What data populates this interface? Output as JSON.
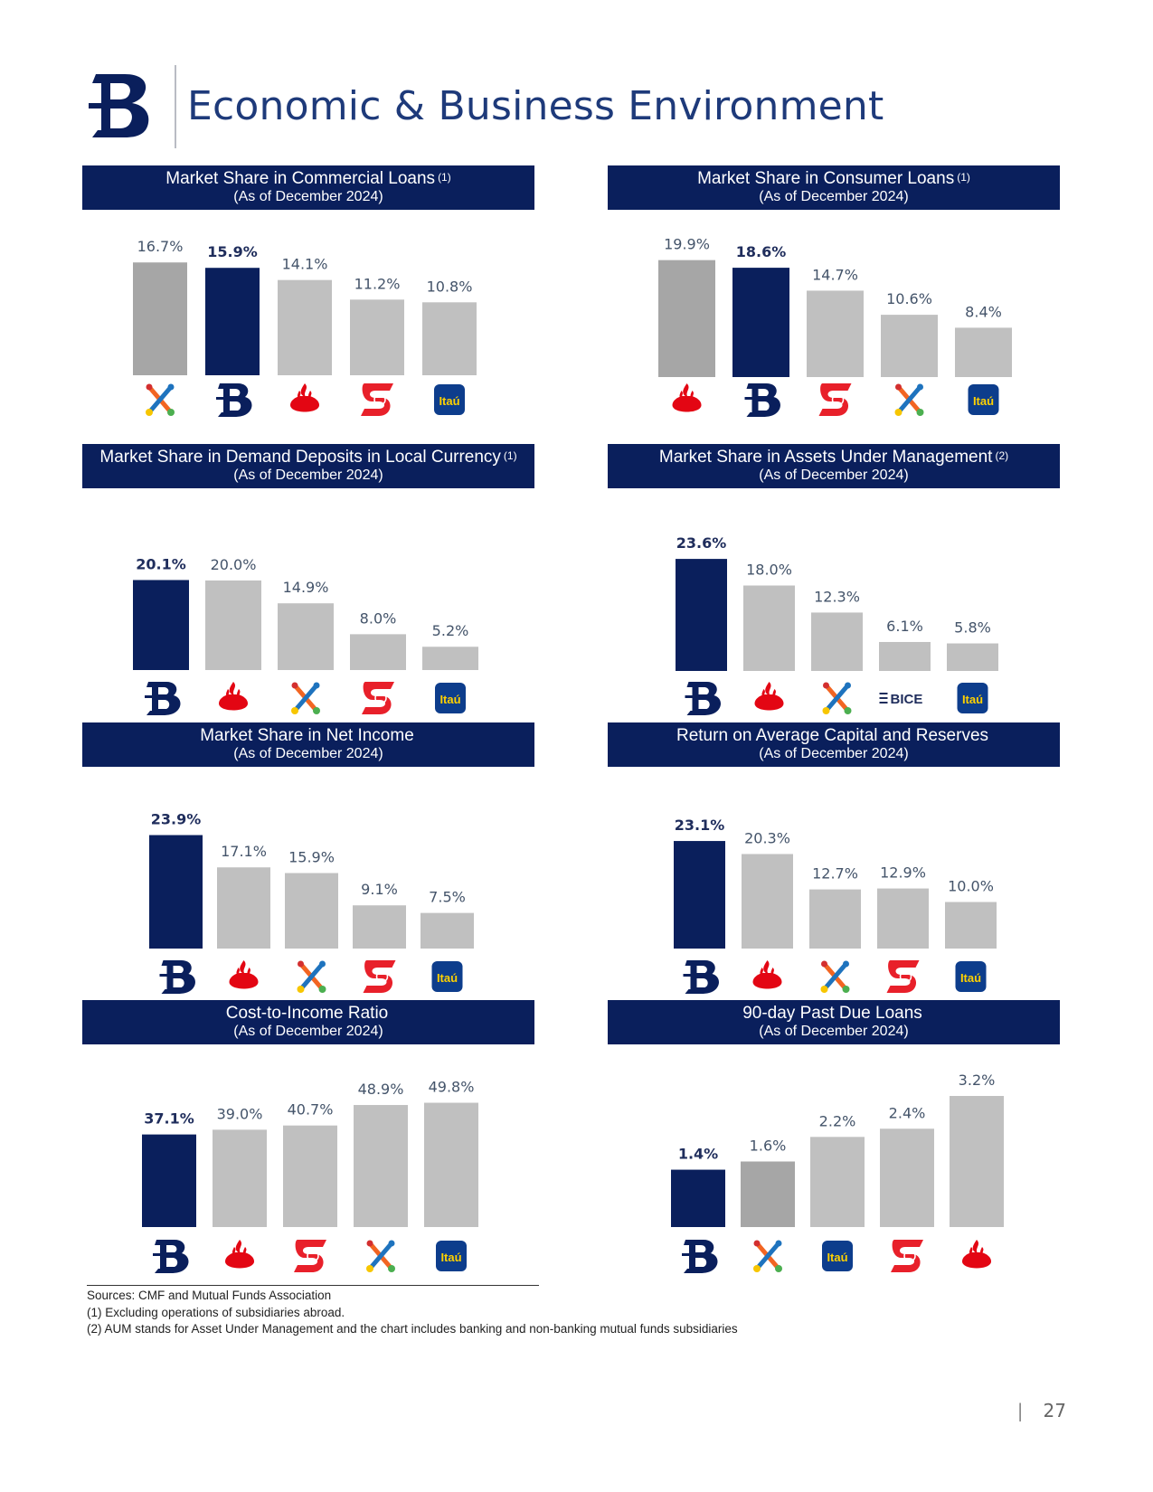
{
  "header": {
    "title": "Economic & Business Environment"
  },
  "colors": {
    "navy": "#0a1f5c",
    "darkgray": "#a6a6a6",
    "lightgray": "#c0c0c0"
  },
  "chart_data": [
    {
      "type": "bar",
      "title": "Market Share in Commercial Loans",
      "note": "(1)",
      "subtitle": "(As of December 2024)",
      "categories": [
        "Bci",
        "Banco de Chile",
        "Santander",
        "Scotiabank",
        "Itaú"
      ],
      "values": [
        16.7,
        15.9,
        14.1,
        11.2,
        10.8
      ],
      "labels": [
        "16.7%",
        "15.9%",
        "14.1%",
        "11.2%",
        "10.8%"
      ],
      "colors": [
        "darkgray",
        "navy",
        "lightgray",
        "lightgray",
        "lightgray"
      ],
      "ylim": [
        0,
        17
      ]
    },
    {
      "type": "bar",
      "title": "Market Share in Consumer Loans",
      "note": "(1)",
      "subtitle": "(As of December 2024)",
      "categories": [
        "Santander",
        "Banco de Chile",
        "Scotiabank",
        "Bci",
        "Itaú"
      ],
      "values": [
        19.9,
        18.6,
        14.7,
        10.6,
        8.4
      ],
      "labels": [
        "19.9%",
        "18.6%",
        "14.7%",
        "10.6%",
        "8.4%"
      ],
      "colors": [
        "darkgray",
        "navy",
        "lightgray",
        "lightgray",
        "lightgray"
      ],
      "ylim": [
        0,
        20
      ]
    },
    {
      "type": "bar",
      "title": "Market Share in Demand Deposits in Local Currency",
      "note": "(1)",
      "subtitle": "(As of December 2024)",
      "categories": [
        "Banco de Chile",
        "Santander",
        "Bci",
        "Scotiabank",
        "Itaú"
      ],
      "values": [
        20.1,
        20.0,
        14.9,
        8.0,
        5.2
      ],
      "labels": [
        "20.1%",
        "20.0%",
        "14.9%",
        "8.0%",
        "5.2%"
      ],
      "colors": [
        "navy",
        "lightgray",
        "lightgray",
        "lightgray",
        "lightgray"
      ],
      "ylim": [
        0,
        21
      ]
    },
    {
      "type": "bar",
      "title": "Market Share in Assets Under Management",
      "note": "(2)",
      "subtitle": "(As of December 2024)",
      "categories": [
        "Banco de Chile",
        "Santander",
        "Bci",
        "BICE",
        "Itaú"
      ],
      "values": [
        23.6,
        18.0,
        12.3,
        6.1,
        5.8
      ],
      "labels": [
        "23.6%",
        "18.0%",
        "12.3%",
        "6.1%",
        "5.8%"
      ],
      "colors": [
        "navy",
        "lightgray",
        "lightgray",
        "lightgray",
        "lightgray"
      ],
      "ylim": [
        0,
        24
      ]
    },
    {
      "type": "bar",
      "title": "Market Share in Net Income",
      "note": "",
      "subtitle": "(As of December 2024)",
      "categories": [
        "Banco de Chile",
        "Santander",
        "Bci",
        "Scotiabank",
        "Itaú"
      ],
      "values": [
        23.9,
        17.1,
        15.9,
        9.1,
        7.5
      ],
      "labels": [
        "23.9%",
        "17.1%",
        "15.9%",
        "9.1%",
        "7.5%"
      ],
      "colors": [
        "navy",
        "lightgray",
        "lightgray",
        "lightgray",
        "lightgray"
      ],
      "ylim": [
        0,
        24
      ]
    },
    {
      "type": "bar",
      "title": "Return on Average Capital and Reserves",
      "note": "",
      "subtitle": "(As of December 2024)",
      "categories": [
        "Banco de Chile",
        "Santander",
        "Bci",
        "Scotiabank",
        "Itaú"
      ],
      "values": [
        23.1,
        20.3,
        12.7,
        12.9,
        10.0
      ],
      "labels": [
        "23.1%",
        "20.3%",
        "12.7%",
        "12.9%",
        "10.0%"
      ],
      "colors": [
        "navy",
        "lightgray",
        "lightgray",
        "lightgray",
        "lightgray"
      ],
      "ylim": [
        0,
        23.5
      ]
    },
    {
      "type": "bar",
      "title": "Cost-to-Income Ratio",
      "note": "",
      "subtitle": "(As of December 2024)",
      "categories": [
        "Banco de Chile",
        "Santander",
        "Scotiabank",
        "Bci",
        "Itaú"
      ],
      "values": [
        37.1,
        39.0,
        40.7,
        48.9,
        49.8
      ],
      "labels": [
        "37.1%",
        "39.0%",
        "40.7%",
        "48.9%",
        "49.8%"
      ],
      "colors": [
        "navy",
        "lightgray",
        "lightgray",
        "lightgray",
        "lightgray"
      ],
      "ylim": [
        0,
        50
      ]
    },
    {
      "type": "bar",
      "title": "90-day Past Due Loans",
      "note": "",
      "subtitle": "(As of December 2024)",
      "categories": [
        "Banco de Chile",
        "Bci",
        "Itaú",
        "Scotiabank",
        "Santander"
      ],
      "values": [
        1.4,
        1.6,
        2.2,
        2.4,
        3.2
      ],
      "labels": [
        "1.4%",
        "1.6%",
        "2.2%",
        "2.4%",
        "3.2%"
      ],
      "colors": [
        "navy",
        "darkgray",
        "lightgray",
        "lightgray",
        "lightgray"
      ],
      "ylim": [
        0,
        3.2
      ]
    }
  ],
  "logo_texts": {
    "itau": "Itaú",
    "bice": "BICE"
  },
  "footer": {
    "sources": "Sources: CMF and Mutual Funds Association",
    "note1": "(1)   Excluding operations of subsidiaries abroad.",
    "note2": "(2)   AUM stands for Asset Under Management and the chart includes banking and non-banking mutual funds subsidiaries"
  },
  "page_number": "27"
}
